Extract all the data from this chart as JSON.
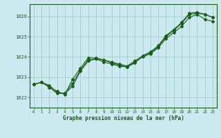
{
  "xlabel": "Graphe pression niveau de la mer (hPa)",
  "bg_color": "#cce8f0",
  "line_color": "#1a5c1a",
  "grid_color": "#99ccbb",
  "ylim": [
    1021.5,
    1026.6
  ],
  "xlim": [
    -0.5,
    23.5
  ],
  "yticks": [
    1022,
    1023,
    1024,
    1025,
    1026
  ],
  "xticks": [
    0,
    1,
    2,
    3,
    4,
    5,
    6,
    7,
    8,
    9,
    10,
    11,
    12,
    13,
    14,
    15,
    16,
    17,
    18,
    19,
    20,
    21,
    22,
    23
  ],
  "series1_x": [
    0,
    1,
    2,
    3,
    4,
    5,
    6,
    7,
    8,
    9,
    10,
    11,
    12,
    13,
    14,
    15,
    16,
    17,
    18,
    19,
    20,
    21,
    22,
    23
  ],
  "series1_y": [
    1022.65,
    1022.75,
    1022.6,
    1022.25,
    1022.2,
    1022.55,
    1023.3,
    1023.8,
    1023.9,
    1023.75,
    1023.65,
    1023.55,
    1023.5,
    1023.75,
    1024.0,
    1024.15,
    1024.45,
    1024.9,
    1025.2,
    1025.5,
    1025.95,
    1026.1,
    1025.85,
    1025.75
  ],
  "series2_x": [
    0,
    1,
    2,
    3,
    4,
    5,
    6,
    7,
    8,
    9,
    10,
    11,
    12,
    13,
    14,
    15,
    16,
    17,
    18,
    19,
    20,
    21,
    22,
    23
  ],
  "series2_y": [
    1022.65,
    1022.75,
    1022.55,
    1022.3,
    1022.15,
    1022.9,
    1023.45,
    1023.95,
    1023.95,
    1023.85,
    1023.7,
    1023.6,
    1023.5,
    1023.7,
    1024.05,
    1024.2,
    1024.5,
    1025.0,
    1025.3,
    1025.65,
    1026.1,
    1026.15,
    1026.1,
    1025.95
  ],
  "series3_x": [
    0,
    1,
    2,
    3,
    4,
    5,
    6,
    7,
    8,
    9,
    10,
    11,
    12,
    13,
    14,
    15,
    16,
    17,
    18,
    19,
    20,
    21,
    22,
    23
  ],
  "series3_y": [
    1022.65,
    1022.75,
    1022.5,
    1022.2,
    1022.2,
    1022.7,
    1023.35,
    1023.85,
    1023.9,
    1023.85,
    1023.75,
    1023.65,
    1023.55,
    1023.8,
    1024.05,
    1024.25,
    1024.55,
    1025.05,
    1025.35,
    1025.7,
    1026.15,
    1026.2,
    1026.1,
    1025.95
  ]
}
